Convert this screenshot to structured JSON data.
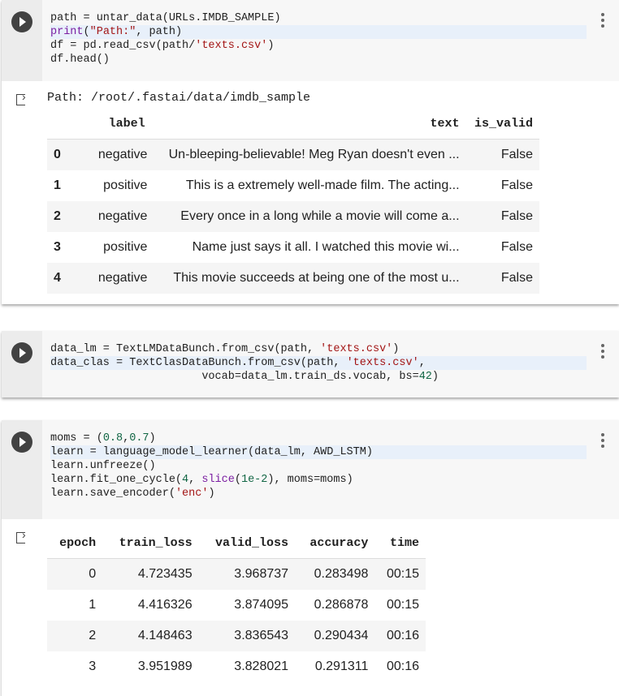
{
  "cells": [
    {
      "code": [
        [
          [
            "path = untar_data(URLs.IMDB_SAMPLE)",
            ""
          ]
        ],
        [
          [
            "print",
            "kw"
          ],
          [
            "(",
            ""
          ],
          [
            "\"Path:\"",
            "str"
          ],
          [
            ", path)",
            ""
          ]
        ],
        [
          [
            "df = pd.read_csv(path/",
            ""
          ],
          [
            "'texts.csv'",
            "str"
          ],
          [
            ")",
            ""
          ]
        ],
        [
          [
            "df.head()",
            ""
          ]
        ]
      ],
      "highlight": 1
    },
    {
      "code": [
        [
          [
            "data_lm = TextLMDataBunch.from_csv(path, ",
            ""
          ],
          [
            "'texts.csv'",
            "str"
          ],
          [
            ")",
            ""
          ]
        ],
        [
          [
            "data_clas = TextClasDataBunch.from_csv(path, ",
            ""
          ],
          [
            "'texts.csv'",
            "str"
          ],
          [
            ",",
            ""
          ]
        ],
        [
          [
            "                       vocab=data_lm.train_ds.vocab, bs=",
            ""
          ],
          [
            "42",
            "num"
          ],
          [
            ")",
            ""
          ]
        ]
      ],
      "highlight": 1
    },
    {
      "code": [
        [
          [
            "moms = (",
            ""
          ],
          [
            "0.8",
            "num"
          ],
          [
            ",",
            ""
          ],
          [
            "0.7",
            "num"
          ],
          [
            ")",
            ""
          ]
        ],
        [
          [
            "learn = language_model_learner(data_lm, AWD_LSTM)",
            ""
          ]
        ],
        [
          [
            "learn.unfreeze()",
            ""
          ]
        ],
        [
          [
            "learn.fit_one_cycle(",
            ""
          ],
          [
            "4",
            "num"
          ],
          [
            ", ",
            ""
          ],
          [
            "slice",
            "kw"
          ],
          [
            "(",
            ""
          ],
          [
            "1e-2",
            "num"
          ],
          [
            "), moms=moms)",
            ""
          ]
        ],
        [
          [
            "learn.save_encoder(",
            ""
          ],
          [
            "'enc'",
            "str"
          ],
          [
            ")",
            ""
          ]
        ]
      ],
      "highlight": 1
    }
  ],
  "output1": {
    "path_line": "Path: /root/.fastai/data/imdb_sample",
    "headers": [
      "",
      "label",
      "text",
      "is_valid"
    ],
    "rows": [
      [
        "0",
        "negative",
        "Un-bleeping-believable! Meg Ryan doesn't even ...",
        "False"
      ],
      [
        "1",
        "positive",
        "This is a extremely well-made film. The acting...",
        "False"
      ],
      [
        "2",
        "negative",
        "Every once in a long while a movie will come a...",
        "False"
      ],
      [
        "3",
        "positive",
        "Name just says it all. I watched this movie wi...",
        "False"
      ],
      [
        "4",
        "negative",
        "This movie succeeds at being one of the most u...",
        "False"
      ]
    ]
  },
  "output3": {
    "headers": [
      "epoch",
      "train_loss",
      "valid_loss",
      "accuracy",
      "time"
    ],
    "rows": [
      [
        "0",
        "4.723435",
        "3.968737",
        "0.283498",
        "00:15"
      ],
      [
        "1",
        "4.416326",
        "3.874095",
        "0.286878",
        "00:15"
      ],
      [
        "2",
        "4.148463",
        "3.836543",
        "0.290434",
        "00:16"
      ],
      [
        "3",
        "3.951989",
        "3.828021",
        "0.291311",
        "00:16"
      ]
    ]
  }
}
